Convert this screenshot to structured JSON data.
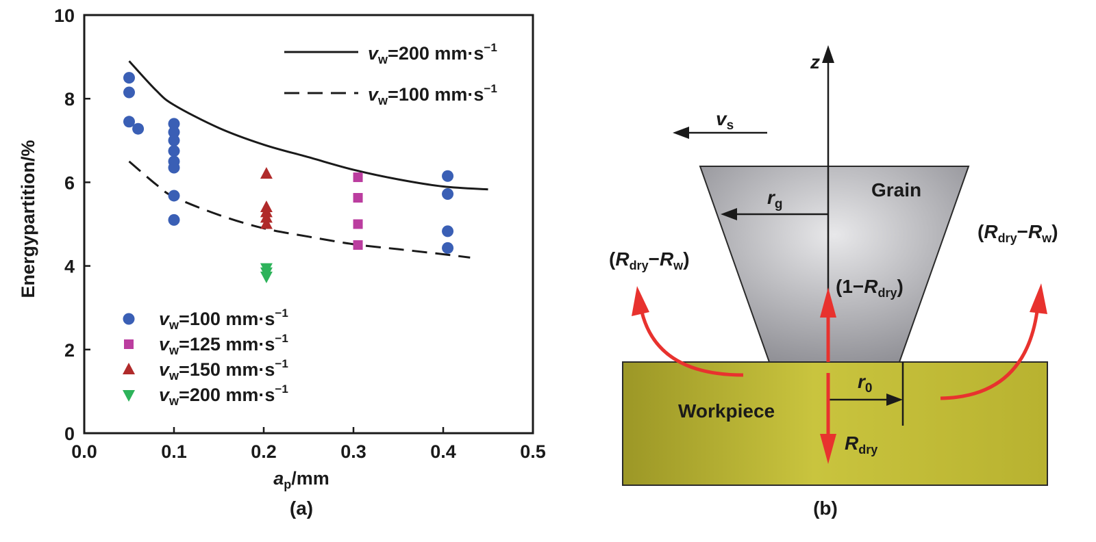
{
  "chart_data": {
    "type": "scatter",
    "title": "",
    "xlabel_main": "a",
    "xlabel_sub": "p",
    "xlabel_unit": "/mm",
    "ylabel": "Energypartition/%",
    "xlim": [
      0,
      0.5
    ],
    "ylim": [
      0,
      10
    ],
    "x_ticks": [
      "0.0",
      "0.1",
      "0.2",
      "0.3",
      "0.4",
      "0.5"
    ],
    "y_ticks": [
      "0",
      "2",
      "4",
      "6",
      "8",
      "10"
    ],
    "grid": false,
    "series": [
      {
        "name_main": "v",
        "name_sub": "w",
        "name_rest": "=100 mm·s",
        "name_sup": "−1",
        "marker": "circle",
        "color": "#3a5fb5",
        "points": [
          [
            0.05,
            8.5
          ],
          [
            0.05,
            8.15
          ],
          [
            0.05,
            7.45
          ],
          [
            0.06,
            7.28
          ],
          [
            0.1,
            7.4
          ],
          [
            0.1,
            7.2
          ],
          [
            0.1,
            7.0
          ],
          [
            0.1,
            6.75
          ],
          [
            0.1,
            6.5
          ],
          [
            0.1,
            6.35
          ],
          [
            0.1,
            5.68
          ],
          [
            0.1,
            5.1
          ],
          [
            0.405,
            6.15
          ],
          [
            0.405,
            5.72
          ],
          [
            0.405,
            4.83
          ],
          [
            0.405,
            4.43
          ]
        ]
      },
      {
        "name_main": "v",
        "name_sub": "w",
        "name_rest": "=125 mm·s",
        "name_sup": "−1",
        "marker": "square",
        "color": "#bb3d9f",
        "points": [
          [
            0.305,
            6.12
          ],
          [
            0.305,
            5.63
          ],
          [
            0.305,
            5.0
          ],
          [
            0.305,
            4.5
          ]
        ]
      },
      {
        "name_main": "v",
        "name_sub": "w",
        "name_rest": "=150 mm·s",
        "name_sup": "−1",
        "marker": "triangle-up",
        "color": "#b02a2a",
        "points": [
          [
            0.203,
            6.2
          ],
          [
            0.203,
            5.4
          ],
          [
            0.203,
            5.28
          ],
          [
            0.203,
            5.15
          ],
          [
            0.203,
            5.0
          ]
        ]
      },
      {
        "name_main": "v",
        "name_sub": "w",
        "name_rest": "=200 mm·s",
        "name_sup": "−1",
        "marker": "triangle-down",
        "color": "#2db35a",
        "points": [
          [
            0.203,
            3.95
          ],
          [
            0.203,
            3.85
          ],
          [
            0.203,
            3.75
          ]
        ]
      }
    ],
    "lines": [
      {
        "name_main": "v",
        "name_sub": "w",
        "name_rest": "=200 mm·s",
        "name_sup": "−1",
        "style": "solid",
        "points": [
          [
            0.05,
            8.9
          ],
          [
            0.08,
            8.2
          ],
          [
            0.1,
            7.85
          ],
          [
            0.15,
            7.3
          ],
          [
            0.2,
            6.9
          ],
          [
            0.25,
            6.6
          ],
          [
            0.3,
            6.3
          ],
          [
            0.35,
            6.07
          ],
          [
            0.4,
            5.9
          ],
          [
            0.45,
            5.83
          ]
        ]
      },
      {
        "name_main": "v",
        "name_sub": "w",
        "name_rest": "=100 mm·s",
        "name_sup": "−1",
        "style": "dashed",
        "points": [
          [
            0.05,
            6.5
          ],
          [
            0.08,
            5.95
          ],
          [
            0.1,
            5.65
          ],
          [
            0.15,
            5.22
          ],
          [
            0.2,
            4.9
          ],
          [
            0.25,
            4.7
          ],
          [
            0.3,
            4.52
          ],
          [
            0.35,
            4.4
          ],
          [
            0.4,
            4.28
          ],
          [
            0.43,
            4.2
          ]
        ]
      }
    ],
    "panel_label": "(a)"
  },
  "diagram": {
    "panel_label": "(b)",
    "z_label": "z",
    "vs_main": "v",
    "vs_sub": "s",
    "rg_main": "r",
    "rg_sub": "g",
    "r0_main": "r",
    "r0_sub": "0",
    "grain_label": "Grain",
    "workpiece_label": "Workpiece",
    "left_flux": {
      "open": "(",
      "R1": "R",
      "sub1": "dry",
      "minus": "−",
      "R2": "R",
      "sub2": "w",
      "close": ")"
    },
    "right_flux": {
      "open": "(",
      "R1": "R",
      "sub1": "dry",
      "minus": "−",
      "R2": "R",
      "sub2": "w",
      "close": ")"
    },
    "up_flux": {
      "open": "(1−",
      "R": "R",
      "sub": "dry",
      "close": ")"
    },
    "down_flux": {
      "R": "R",
      "sub": "dry"
    },
    "colors": {
      "grain": "#a8a8ad",
      "workpiece": "#b5b02e",
      "arrow": "#e8322e"
    }
  }
}
